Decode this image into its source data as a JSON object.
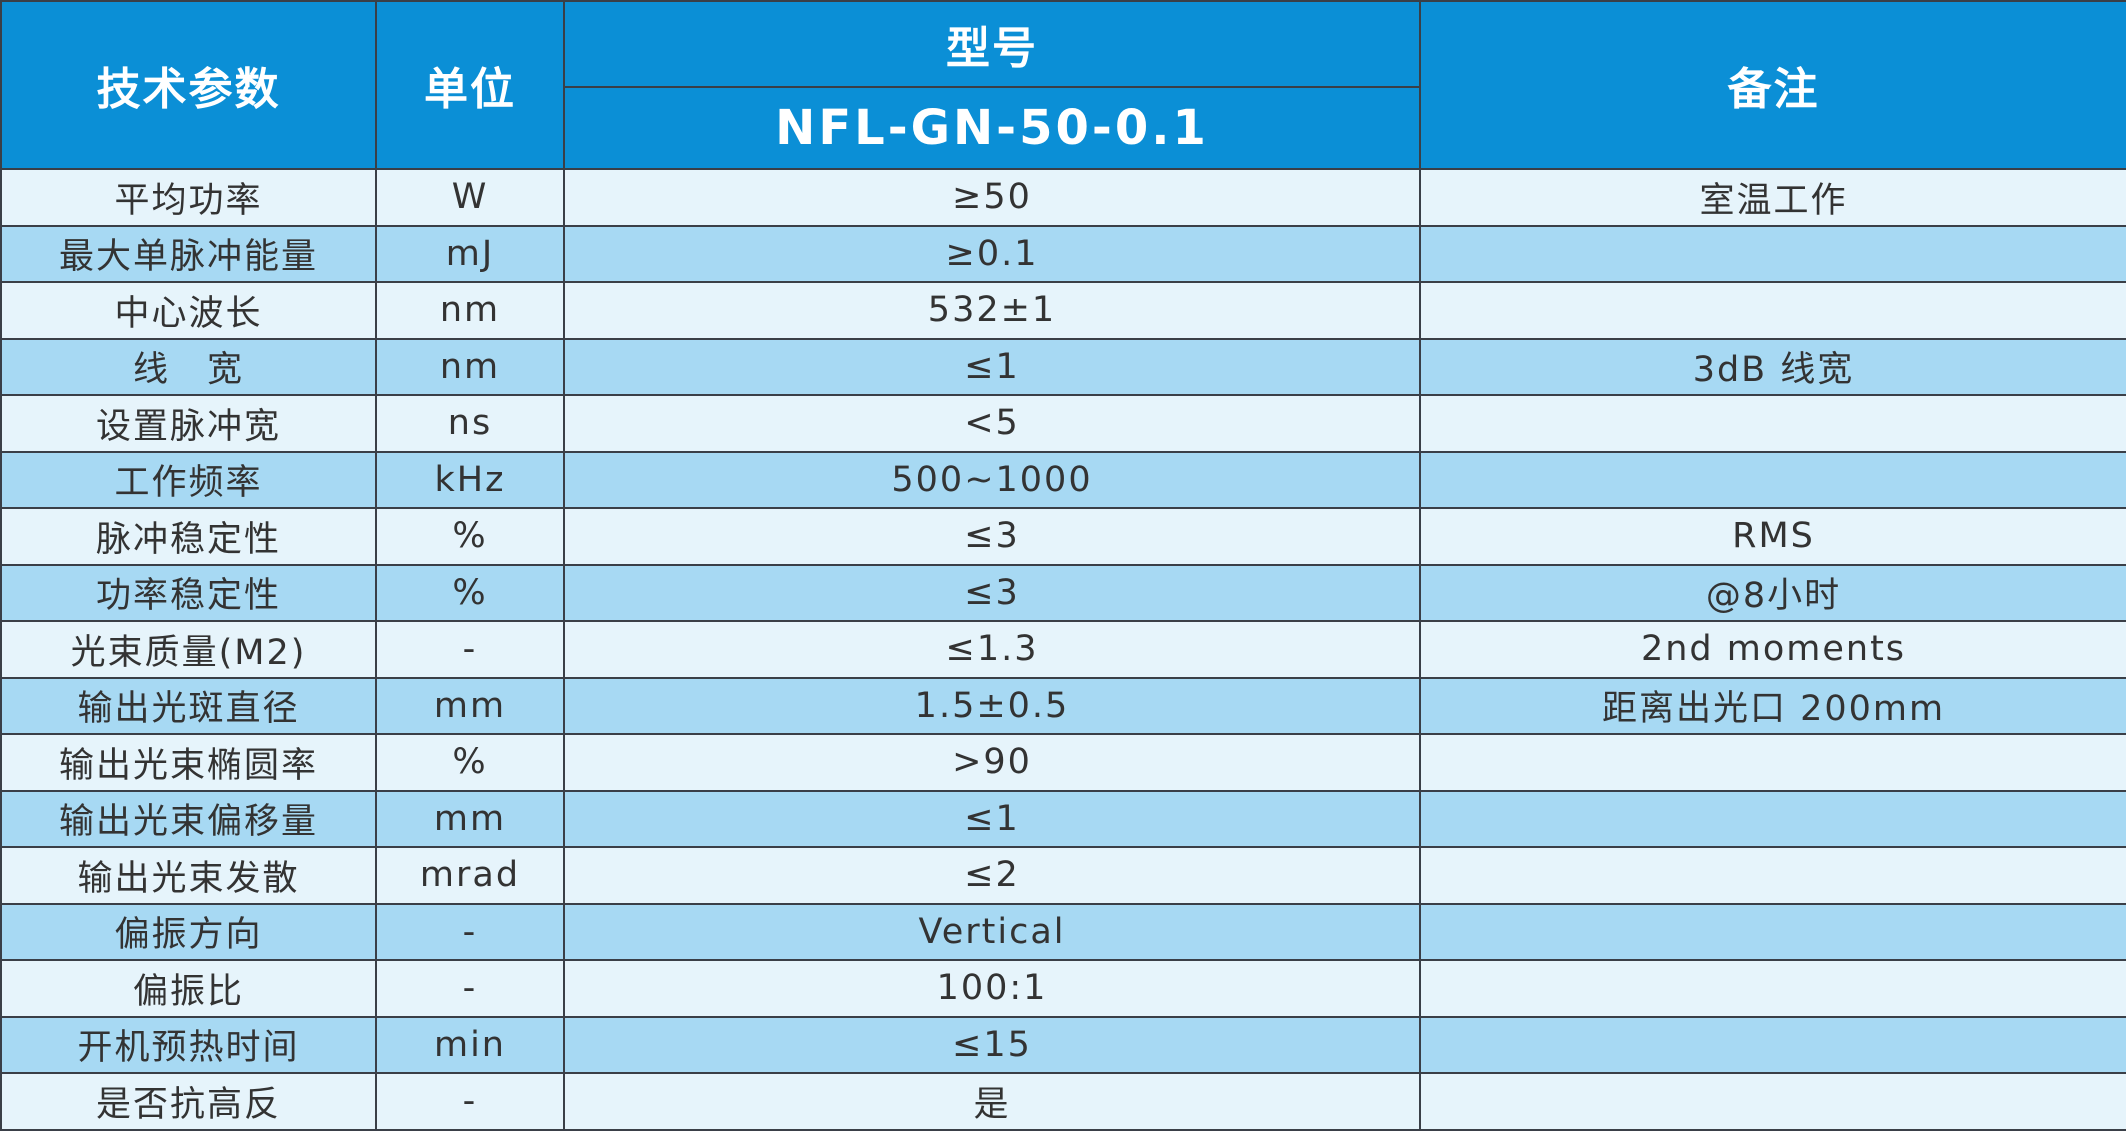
{
  "header": {
    "param": "技术参数",
    "unit": "单位",
    "model_group": "型号",
    "model_name": "NFL-GN-50-0.1",
    "note": "备注"
  },
  "rows": [
    {
      "param": "平均功率",
      "unit": "W",
      "value": "≥50",
      "note": "室温工作"
    },
    {
      "param": "最大单脉冲能量",
      "unit": "mJ",
      "value": "≥0.1",
      "note": ""
    },
    {
      "param": "中心波长",
      "unit": "nm",
      "value": "532±1",
      "note": ""
    },
    {
      "param": "线　宽",
      "unit": "nm",
      "value": "≤1",
      "note": "3dB 线宽"
    },
    {
      "param": "设置脉冲宽",
      "unit": "ns",
      "value": "<5",
      "note": ""
    },
    {
      "param": "工作频率",
      "unit": "kHz",
      "value": "500~1000",
      "note": ""
    },
    {
      "param": "脉冲稳定性",
      "unit": "%",
      "value": "≤3",
      "note": "RMS"
    },
    {
      "param": "功率稳定性",
      "unit": "%",
      "value": "≤3",
      "note": "@8小时"
    },
    {
      "param": "光束质量(M2)",
      "unit": "-",
      "value": "≤1.3",
      "note": "2nd moments"
    },
    {
      "param": "输出光斑直径",
      "unit": "mm",
      "value": "1.5±0.5",
      "note": "距离出光口 200mm"
    },
    {
      "param": "输出光束椭圆率",
      "unit": "%",
      "value": ">90",
      "note": ""
    },
    {
      "param": "输出光束偏移量",
      "unit": "mm",
      "value": "≤1",
      "note": ""
    },
    {
      "param": "输出光束发散",
      "unit": "mrad",
      "value": "≤2",
      "note": ""
    },
    {
      "param": "偏振方向",
      "unit": "-",
      "value": "Vertical",
      "note": ""
    },
    {
      "param": "偏振比",
      "unit": "-",
      "value": "100:1",
      "note": ""
    },
    {
      "param": "开机预热时间",
      "unit": "min",
      "value": "≤15",
      "note": ""
    },
    {
      "param": "是否抗高反",
      "unit": "-",
      "value": "是",
      "note": ""
    }
  ],
  "colors": {
    "header_bg": "#0b8fd6",
    "row_light": "#e6f4fb",
    "row_dark": "#a7d9f3",
    "border": "#3a3f47"
  }
}
